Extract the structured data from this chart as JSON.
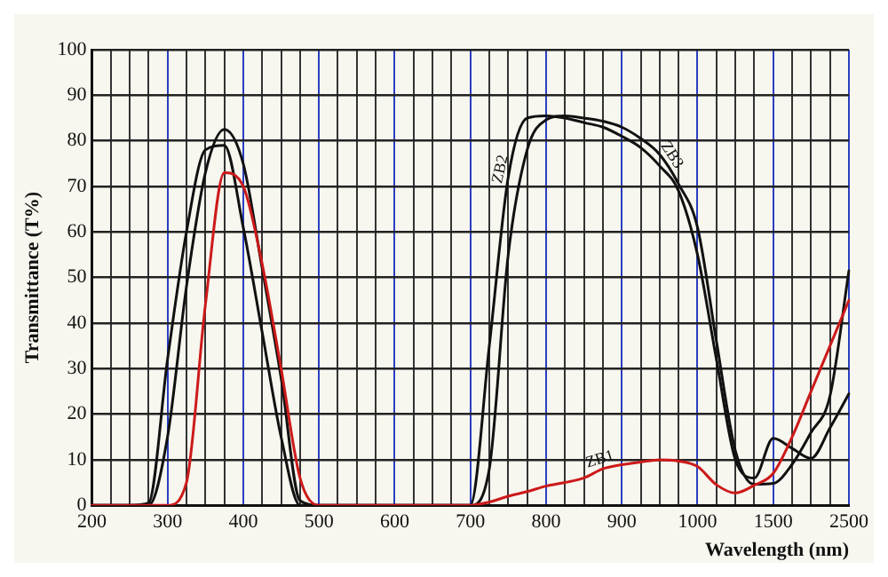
{
  "chart_data": {
    "type": "line",
    "xlabel": "Wavelength (nm)",
    "ylabel": "Transmittance (T%)",
    "categories": [
      "200",
      null,
      null,
      null,
      "300",
      null,
      null,
      null,
      "400",
      null,
      null,
      null,
      "500",
      null,
      null,
      null,
      "600",
      null,
      null,
      null,
      "700",
      null,
      null,
      null,
      "800",
      null,
      null,
      null,
      "900",
      null,
      null,
      null,
      "1000",
      null,
      null,
      null,
      "1500",
      null,
      null,
      null,
      "2500"
    ],
    "ylim": [
      0,
      100
    ],
    "yticks": [
      0,
      10,
      20,
      30,
      40,
      50,
      60,
      70,
      80,
      90,
      100
    ],
    "grid": true,
    "legend": false,
    "marker": "none",
    "line_style": "solid",
    "series": [
      {
        "color": "#cc1a1a",
        "values": [
          0,
          0,
          0,
          0,
          0,
          5,
          44,
          73,
          70,
          53,
          30,
          6,
          0,
          0,
          0,
          0,
          0,
          0,
          0,
          0,
          0,
          0.7,
          2,
          3,
          4.2,
          5,
          6,
          8,
          8.9,
          9.5,
          10,
          9.7,
          8.5,
          4.5,
          2.7,
          4.4,
          7,
          15,
          25,
          35,
          45
        ]
      },
      {
        "color": "#111111",
        "values": [
          0,
          0,
          0,
          0.5,
          32,
          60,
          78,
          79,
          61,
          38,
          15,
          0,
          0,
          0,
          0,
          0,
          0,
          0,
          0,
          0,
          0,
          35,
          72,
          85,
          85.5,
          85,
          84,
          83,
          81,
          78.5,
          74.5,
          69,
          55,
          32,
          10,
          6,
          14.7,
          12.5,
          10.3,
          17,
          24.5
        ]
      },
      {
        "color": "#111111",
        "values": [
          0,
          0,
          0,
          0,
          15,
          48,
          73,
          82.5,
          75,
          52,
          28,
          1,
          0,
          0,
          0,
          0,
          0,
          0,
          0,
          0,
          0,
          8,
          55,
          78,
          84.6,
          85.5,
          85,
          84.3,
          83,
          80.5,
          77,
          70.5,
          61,
          36,
          12,
          4.6,
          4.8,
          9,
          16,
          24,
          51.5
        ]
      }
    ],
    "annotations": [
      "ZB1",
      "ZB2",
      "ZB3"
    ]
  }
}
